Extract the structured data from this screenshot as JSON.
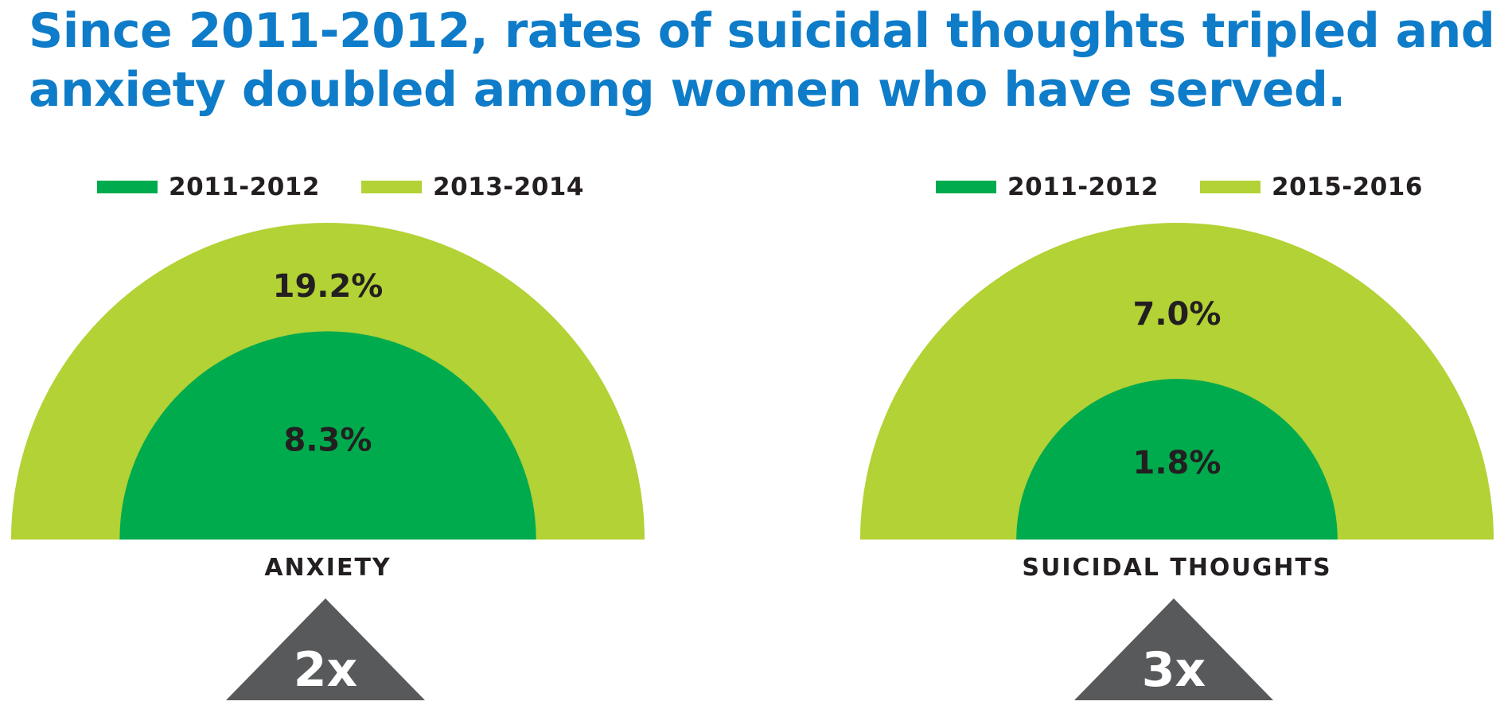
{
  "headline": {
    "line1": "Since 2011-2012, rates of suicidal thoughts tripled and",
    "line2": "anxiety doubled among women who have served."
  },
  "colors": {
    "headline": "#0e7cc8",
    "earlier": "#00ab4e",
    "later": "#b2d235",
    "text": "#231f20",
    "multiplier_bg": "#58595b",
    "multiplier_text": "#ffffff"
  },
  "chart_data": [
    {
      "type": "nested-semicircle",
      "label": "ANXIETY",
      "multiplier": "2x",
      "series": [
        {
          "name": "2011-2012",
          "value": 8.3,
          "display": "8.3%"
        },
        {
          "name": "2013-2014",
          "value": 19.2,
          "display": "19.2%"
        }
      ]
    },
    {
      "type": "nested-semicircle",
      "label": "SUICIDAL THOUGHTS",
      "multiplier": "3x",
      "series": [
        {
          "name": "2011-2012",
          "value": 1.8,
          "display": "1.8%"
        },
        {
          "name": "2015-2016",
          "value": 7.0,
          "display": "7.0%"
        }
      ]
    }
  ]
}
